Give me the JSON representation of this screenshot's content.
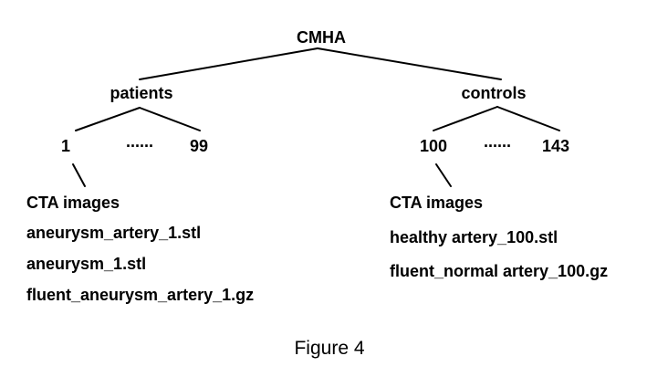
{
  "tree": {
    "root": "CMHA",
    "patients": {
      "label": "patients",
      "first": "1",
      "ellipsis": "......",
      "last": "99",
      "files": [
        "CTA images",
        "aneurysm_artery_1.stl",
        "aneurysm_1.stl",
        "fluent_aneurysm_artery_1.gz"
      ]
    },
    "controls": {
      "label": "controls",
      "first": "100",
      "ellipsis": "......",
      "last": "143",
      "files": [
        "CTA images",
        "healthy artery_100.stl",
        "fluent_normal artery_100.gz"
      ]
    }
  },
  "caption": "Figure 4"
}
